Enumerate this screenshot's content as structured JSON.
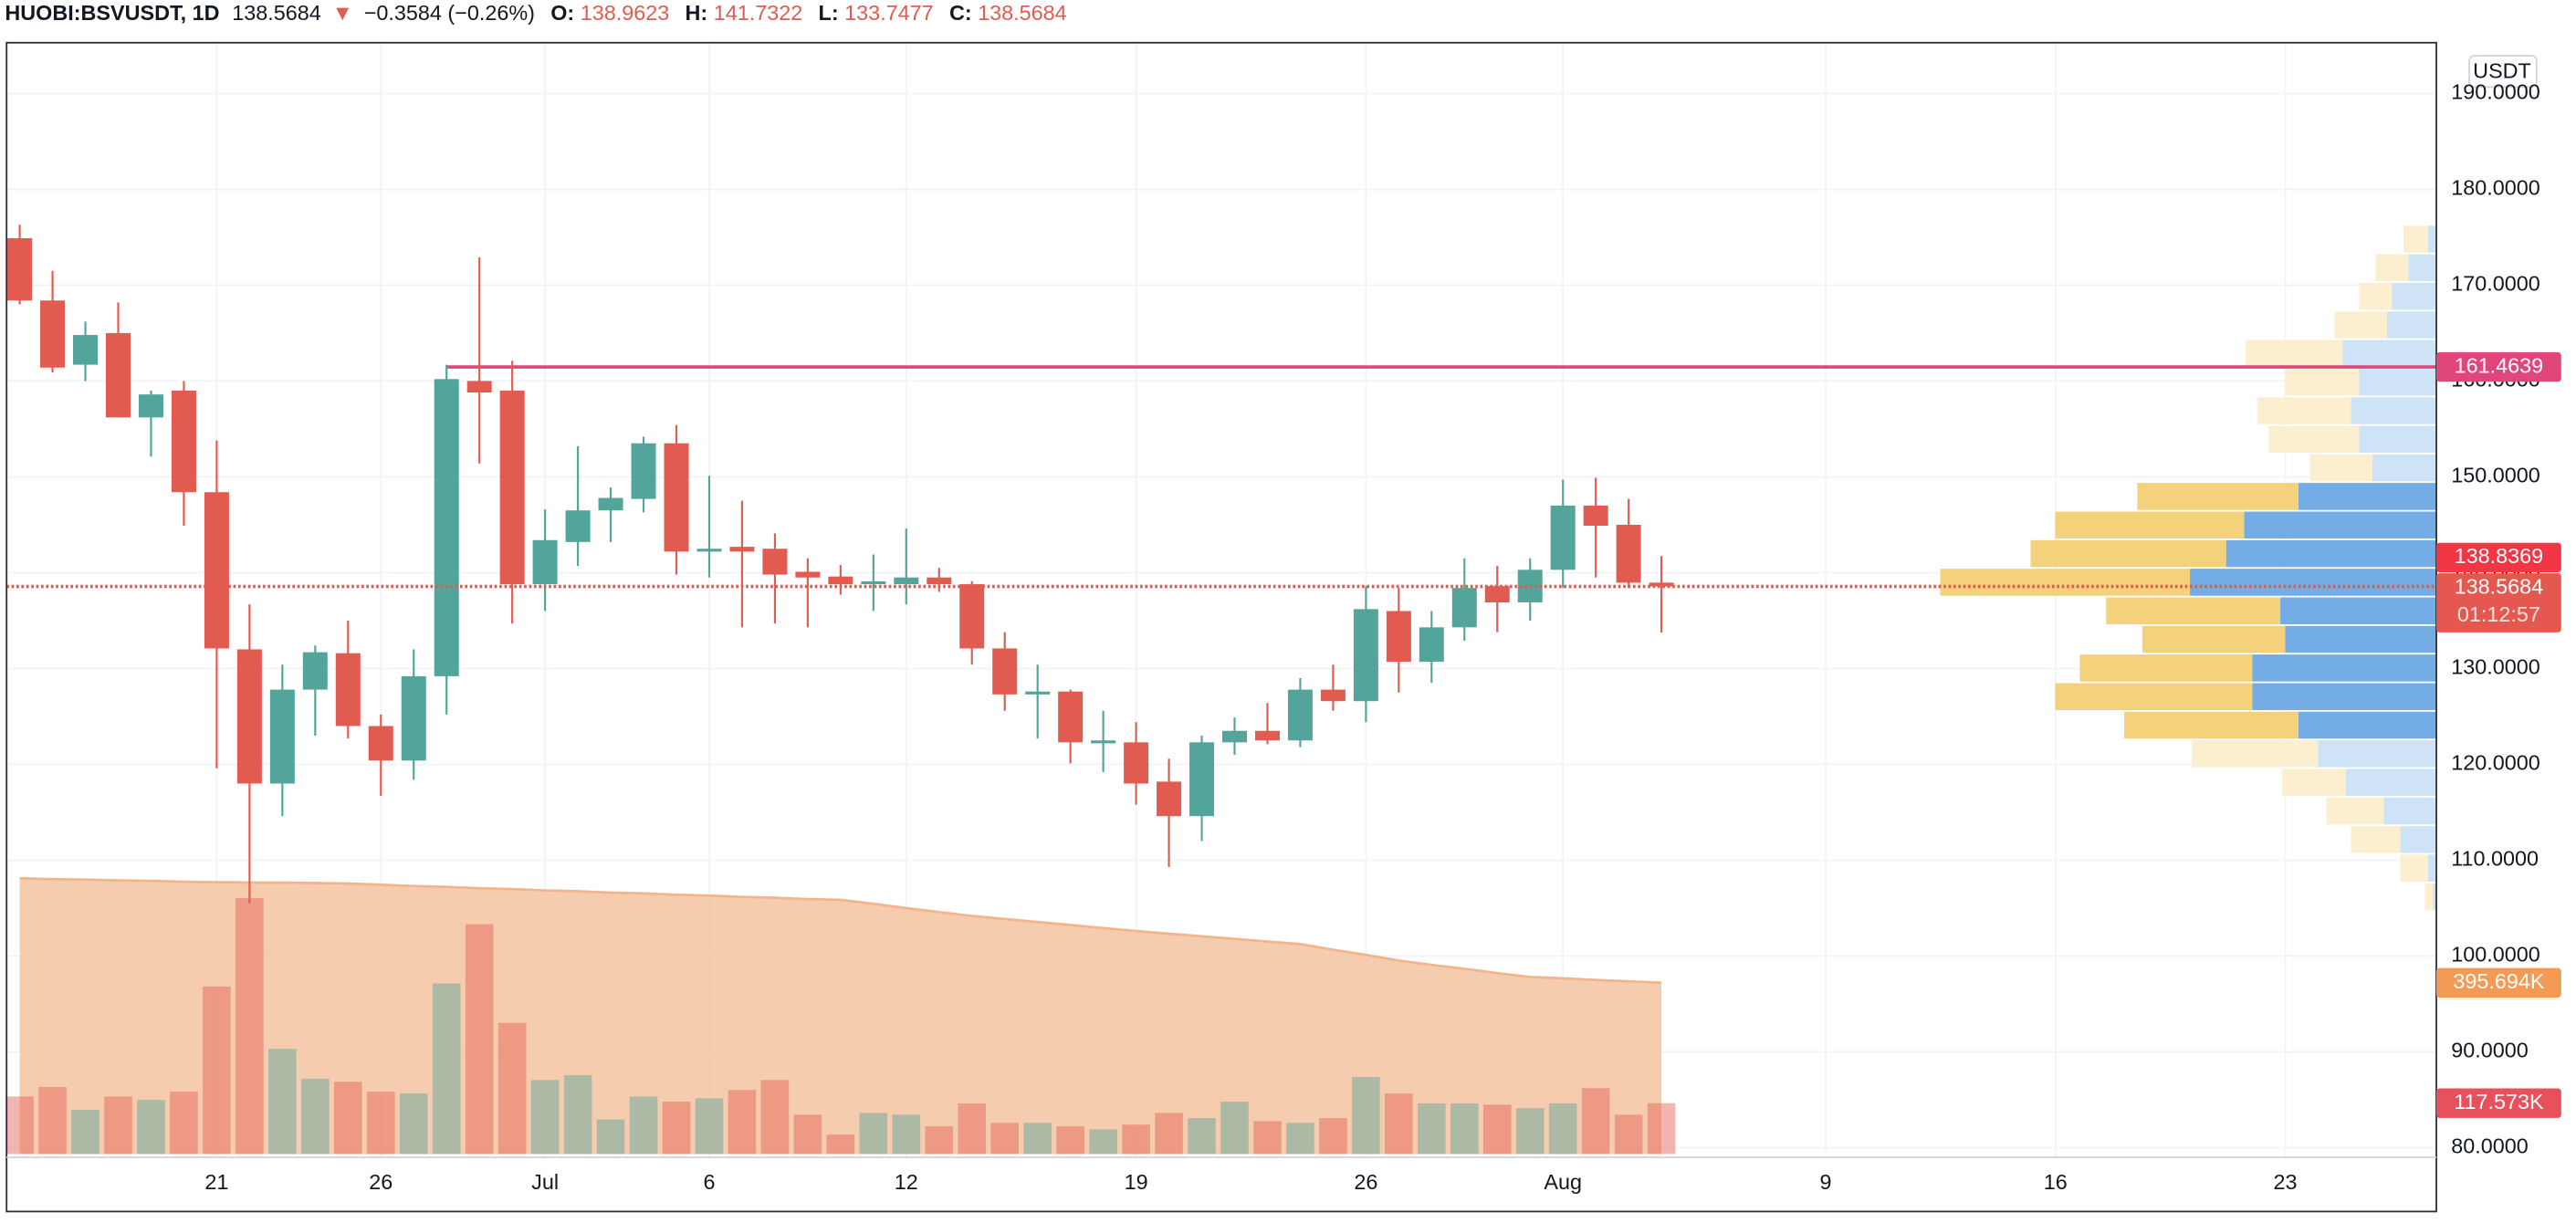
{
  "header": {
    "symbol": "HUOBI:BSVUSDT, 1D",
    "last": "138.5684",
    "arrow": "▼",
    "change": "−0.3584 (−0.26%)",
    "o_label": "O:",
    "open": "138.9623",
    "h_label": "H:",
    "high": "141.7322",
    "l_label": "L:",
    "low": "133.7477",
    "c_label": "C:",
    "close": "138.5684"
  },
  "chart_data": {
    "type": "candlestick",
    "currency": "USDT",
    "categories": [
      null,
      null,
      null,
      null,
      null,
      null,
      "21",
      null,
      null,
      null,
      null,
      "26",
      null,
      null,
      null,
      null,
      "Jul",
      null,
      null,
      null,
      null,
      "6",
      null,
      null,
      null,
      null,
      null,
      "12",
      null,
      null,
      null,
      null,
      null,
      null,
      "19",
      null,
      null,
      null,
      null,
      null,
      null,
      "26",
      null,
      null,
      null,
      null,
      null,
      "Aug",
      null,
      null,
      null,
      null,
      null,
      null,
      null,
      "9",
      null,
      null,
      null,
      null,
      null,
      null,
      "16",
      null,
      null,
      null,
      null,
      null,
      null,
      "23",
      null,
      null,
      null,
      null
    ],
    "open": [
      174.9,
      168.4,
      161.7,
      165.0,
      156.2,
      159.0,
      148.4,
      132.0,
      118.0,
      127.8,
      131.6,
      124.0,
      120.4,
      129.2,
      160.0,
      159.0,
      138.8,
      143.2,
      146.5,
      147.7,
      153.5,
      142.2,
      142.7,
      142.5,
      140.1,
      139.6,
      138.8,
      138.8,
      139.5,
      138.8,
      132.1,
      127.3,
      127.6,
      122.2,
      122.3,
      118.2,
      114.6,
      122.3,
      123.5,
      122.5,
      127.8,
      126.6,
      136.0,
      130.7,
      134.3,
      138.6,
      136.9,
      140.3,
      147.0,
      145.0,
      138.9623,
      null,
      null,
      null,
      null,
      null,
      null,
      null,
      null,
      null,
      null,
      null,
      null,
      null,
      null,
      null,
      null,
      null,
      null,
      null,
      null,
      null,
      null,
      null
    ],
    "high": [
      176.3,
      171.5,
      166.2,
      168.2,
      159.0,
      160.0,
      153.8,
      136.7,
      130.4,
      132.4,
      135.0,
      125.2,
      132.0,
      161.7,
      172.9,
      162.1,
      146.6,
      153.2,
      148.9,
      154.2,
      155.4,
      150.1,
      147.5,
      144.1,
      141.5,
      140.8,
      141.9,
      144.6,
      140.5,
      139.1,
      133.8,
      130.4,
      127.8,
      125.6,
      124.4,
      120.6,
      123.0,
      124.9,
      126.4,
      129.0,
      130.4,
      138.6,
      138.4,
      136.0,
      141.5,
      140.7,
      141.5,
      149.7,
      149.9,
      147.7,
      141.7322,
      null,
      null,
      null,
      null,
      null,
      null,
      null,
      null,
      null,
      null,
      null,
      null,
      null,
      null,
      null,
      null,
      null,
      null,
      null,
      null,
      null,
      null,
      null
    ],
    "low": [
      168.0,
      160.9,
      160.0,
      156.2,
      152.1,
      144.9,
      119.6,
      105.5,
      114.6,
      123.0,
      122.7,
      116.7,
      118.4,
      125.2,
      151.4,
      134.7,
      136.0,
      140.7,
      143.2,
      146.3,
      139.8,
      139.5,
      134.3,
      134.7,
      134.3,
      137.7,
      136.0,
      136.7,
      138.0,
      130.4,
      125.6,
      122.7,
      120.1,
      119.2,
      115.8,
      109.3,
      112.0,
      121.0,
      122.1,
      121.8,
      125.6,
      124.4,
      127.5,
      128.5,
      132.9,
      133.8,
      135.0,
      138.4,
      139.5,
      138.4,
      133.7477,
      null,
      null,
      null,
      null,
      null,
      null,
      null,
      null,
      null,
      null,
      null,
      null,
      null,
      null,
      null,
      null,
      null,
      null,
      null,
      null,
      null,
      null,
      null
    ],
    "close": [
      168.4,
      161.4,
      164.8,
      156.2,
      158.6,
      148.4,
      132.1,
      118.0,
      127.8,
      131.7,
      124.0,
      120.4,
      129.2,
      160.2,
      158.8,
      138.8,
      143.4,
      146.5,
      147.8,
      153.5,
      142.2,
      142.5,
      142.2,
      139.8,
      139.5,
      138.8,
      139.1,
      139.5,
      138.8,
      132.1,
      127.3,
      127.6,
      122.3,
      122.5,
      118.0,
      114.6,
      122.3,
      123.5,
      122.5,
      127.8,
      126.6,
      136.2,
      130.7,
      134.3,
      138.4,
      136.9,
      140.3,
      147.0,
      144.9,
      138.96,
      138.5684,
      null,
      null,
      null,
      null,
      null,
      null,
      null,
      null,
      null,
      null,
      null,
      null,
      null,
      null,
      null,
      null,
      null,
      null,
      null,
      null,
      null,
      null,
      null
    ],
    "up_color": "#53a59b",
    "down_color": "#e25b51",
    "ylim": [
      79,
      195.3
    ],
    "yticks": [
      {
        "value": 80,
        "label": "80.0000"
      },
      {
        "value": 90,
        "label": "90.0000"
      },
      {
        "value": 100,
        "label": "100.0000"
      },
      {
        "value": 110,
        "label": "110.0000"
      },
      {
        "value": 120,
        "label": "120.0000"
      },
      {
        "value": 130,
        "label": "130.0000"
      },
      {
        "value": 140,
        "label": "140.0000"
      },
      {
        "value": 150,
        "label": "150.0000"
      },
      {
        "value": 160,
        "label": "160.0000"
      },
      {
        "value": 170,
        "label": "170.0000"
      },
      {
        "value": 180,
        "label": "180.0000"
      },
      {
        "value": 190,
        "label": "190.0000"
      }
    ],
    "grid": true,
    "volume": {
      "values": [
        133,
        155,
        102,
        133,
        125,
        144,
        387,
        591,
        243,
        174,
        167,
        144,
        140,
        394,
        531,
        303,
        171,
        182,
        80,
        133,
        121,
        129,
        148,
        171,
        91,
        45,
        95,
        91,
        64,
        117,
        72,
        72,
        64,
        57,
        68,
        95,
        83,
        121,
        76,
        72,
        83,
        178,
        140,
        117,
        117,
        114,
        106,
        117,
        152,
        91,
        117.573,
        null,
        null,
        null,
        null,
        null,
        null,
        null,
        null,
        null,
        null,
        null,
        null,
        null,
        null,
        null,
        null,
        null,
        null,
        null,
        null,
        null,
        null,
        null
      ],
      "value_labels": [
        null,
        null,
        null,
        null,
        null,
        null,
        null,
        null,
        null,
        null,
        null,
        null,
        null,
        null,
        null,
        null,
        null,
        null,
        null,
        null,
        null,
        null,
        null,
        null,
        null,
        null,
        null,
        null,
        null,
        null,
        null,
        null,
        null,
        null,
        null,
        null,
        null,
        null,
        null,
        null,
        null,
        null,
        null,
        null,
        null,
        null,
        null,
        null,
        null,
        null,
        "117.573K",
        null,
        null,
        null,
        null,
        null,
        null,
        null,
        null,
        null,
        null,
        null,
        null,
        null,
        null,
        null,
        null,
        null,
        null,
        null,
        null,
        null,
        null,
        null
      ],
      "label_color": "#e8505b"
    },
    "volume_ma": {
      "values": [
        637,
        635,
        634,
        632,
        631,
        629,
        628,
        627,
        627,
        626,
        625,
        622,
        619,
        617,
        614,
        612,
        609,
        607,
        604,
        602,
        599,
        597,
        594,
        592,
        589,
        587,
        578,
        568,
        559,
        550,
        543,
        536,
        529,
        522,
        515,
        509,
        503,
        497,
        491,
        485,
        472,
        460,
        447,
        437,
        428,
        418,
        409,
        406,
        402,
        399,
        395.694,
        null,
        null,
        null,
        null,
        null,
        null,
        null,
        null,
        null,
        null,
        null,
        null,
        null,
        null,
        null,
        null,
        null,
        null,
        null,
        null,
        null,
        null,
        null
      ],
      "value_labels": [
        null,
        null,
        null,
        null,
        null,
        null,
        null,
        null,
        null,
        null,
        null,
        null,
        null,
        null,
        null,
        null,
        null,
        null,
        null,
        null,
        null,
        null,
        null,
        null,
        null,
        null,
        null,
        null,
        null,
        null,
        null,
        null,
        null,
        null,
        null,
        null,
        null,
        null,
        null,
        null,
        null,
        null,
        null,
        null,
        null,
        null,
        null,
        null,
        null,
        null,
        "395.694K",
        null,
        null,
        null,
        null,
        null,
        null,
        null,
        null,
        null,
        null,
        null,
        null,
        null,
        null,
        null,
        null,
        null,
        null,
        null,
        null,
        null,
        null,
        null
      ],
      "color": "#f5c3a0",
      "line_color": "#f2b48a",
      "label_color": "#f39a55"
    },
    "volume_profile": {
      "bins": [
        104.7,
        107.68,
        110.67,
        113.65,
        116.63,
        119.62,
        122.6,
        125.58,
        128.56,
        131.55,
        134.53,
        137.51,
        140.5,
        143.48,
        146.46,
        149.45,
        152.43,
        155.41,
        158.39,
        161.38,
        164.36,
        167.34,
        170.33,
        173.31,
        176.29
      ],
      "up": [
        2,
        5,
        22,
        32,
        55,
        72,
        84,
        112,
        112,
        92,
        95,
        150,
        128,
        117,
        84,
        39,
        47,
        52,
        47,
        57,
        30,
        27,
        17,
        5
      ],
      "down": [
        5,
        17,
        30,
        35,
        39,
        77,
        106,
        120,
        105,
        87,
        106,
        152,
        119,
        115,
        98,
        38,
        55,
        57,
        45,
        59,
        32,
        20,
        20,
        15
      ],
      "value_area": [
        122.6,
        149.45
      ],
      "up_color": "#74ade6",
      "up_color_outside": "#cfe3f6",
      "down_color": "#f4d27c",
      "down_color_outside": "#fbefcf"
    },
    "hline": {
      "value": 161.4639,
      "color": "#e0457b"
    },
    "price_marker": {
      "value": 138.8369,
      "color": "#f23645"
    },
    "last_price": {
      "value": 138.5684,
      "color": "#e5584f"
    },
    "countdown": "01:12:57"
  }
}
